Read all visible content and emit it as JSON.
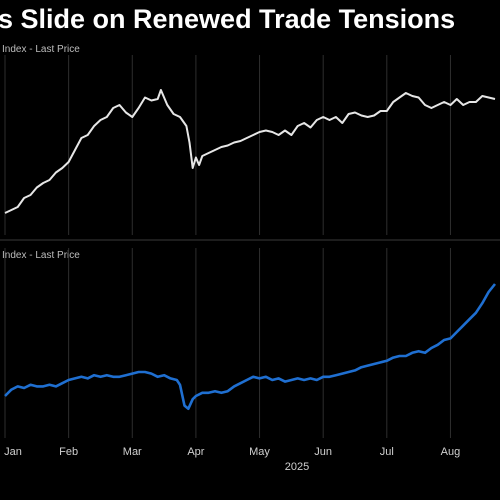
{
  "header": {
    "title": "s Slide on Renewed Trade Tensions"
  },
  "chart_data": [
    {
      "type": "line",
      "label": "Index - Last Price",
      "color": "#e6e6e6",
      "x_unit": "month index (0 = Jan 2025)",
      "xlim": [
        0,
        7.7
      ],
      "ylim": [
        0,
        100
      ],
      "points": [
        [
          0.0,
          8
        ],
        [
          0.1,
          10
        ],
        [
          0.2,
          12
        ],
        [
          0.3,
          18
        ],
        [
          0.4,
          20
        ],
        [
          0.5,
          25
        ],
        [
          0.6,
          28
        ],
        [
          0.7,
          30
        ],
        [
          0.8,
          35
        ],
        [
          0.9,
          38
        ],
        [
          1.0,
          42
        ],
        [
          1.1,
          50
        ],
        [
          1.2,
          58
        ],
        [
          1.3,
          60
        ],
        [
          1.4,
          66
        ],
        [
          1.5,
          70
        ],
        [
          1.6,
          72
        ],
        [
          1.7,
          78
        ],
        [
          1.8,
          80
        ],
        [
          1.9,
          75
        ],
        [
          2.0,
          72
        ],
        [
          2.1,
          78
        ],
        [
          2.2,
          85
        ],
        [
          2.3,
          83
        ],
        [
          2.4,
          84
        ],
        [
          2.45,
          90
        ],
        [
          2.55,
          80
        ],
        [
          2.65,
          74
        ],
        [
          2.75,
          72
        ],
        [
          2.85,
          66
        ],
        [
          2.9,
          55
        ],
        [
          2.95,
          38
        ],
        [
          3.0,
          45
        ],
        [
          3.05,
          40
        ],
        [
          3.1,
          46
        ],
        [
          3.2,
          48
        ],
        [
          3.3,
          50
        ],
        [
          3.4,
          52
        ],
        [
          3.5,
          53
        ],
        [
          3.6,
          55
        ],
        [
          3.7,
          56
        ],
        [
          3.8,
          58
        ],
        [
          3.9,
          60
        ],
        [
          4.0,
          62
        ],
        [
          4.1,
          63
        ],
        [
          4.2,
          62
        ],
        [
          4.3,
          60
        ],
        [
          4.4,
          63
        ],
        [
          4.5,
          60
        ],
        [
          4.6,
          66
        ],
        [
          4.7,
          68
        ],
        [
          4.8,
          65
        ],
        [
          4.9,
          70
        ],
        [
          5.0,
          72
        ],
        [
          5.1,
          70
        ],
        [
          5.2,
          72
        ],
        [
          5.3,
          68
        ],
        [
          5.4,
          74
        ],
        [
          5.5,
          75
        ],
        [
          5.6,
          73
        ],
        [
          5.7,
          72
        ],
        [
          5.8,
          73
        ],
        [
          5.9,
          76
        ],
        [
          6.0,
          76
        ],
        [
          6.1,
          82
        ],
        [
          6.2,
          85
        ],
        [
          6.3,
          88
        ],
        [
          6.4,
          86
        ],
        [
          6.5,
          85
        ],
        [
          6.6,
          80
        ],
        [
          6.7,
          78
        ],
        [
          6.8,
          80
        ],
        [
          6.9,
          82
        ],
        [
          7.0,
          80
        ],
        [
          7.1,
          84
        ],
        [
          7.2,
          80
        ],
        [
          7.3,
          82
        ],
        [
          7.4,
          82
        ],
        [
          7.5,
          86
        ],
        [
          7.6,
          85
        ],
        [
          7.7,
          84
        ]
      ]
    },
    {
      "type": "line",
      "label": "Index - Last Price",
      "color": "#1f6fd1",
      "x_unit": "month index (0 = Jan 2025)",
      "xlim": [
        0,
        7.7
      ],
      "ylim": [
        0,
        100
      ],
      "x_tick_labels": [
        "Jan",
        "Feb",
        "Mar",
        "Apr",
        "May",
        "Jun",
        "Jul",
        "Aug"
      ],
      "x_tick_positions": [
        0,
        1,
        2,
        3,
        4,
        5,
        6,
        7
      ],
      "x_axis_year": "2025",
      "points": [
        [
          0.0,
          20
        ],
        [
          0.1,
          24
        ],
        [
          0.2,
          26
        ],
        [
          0.3,
          25
        ],
        [
          0.4,
          27
        ],
        [
          0.5,
          26
        ],
        [
          0.6,
          26
        ],
        [
          0.7,
          27
        ],
        [
          0.8,
          26
        ],
        [
          0.9,
          28
        ],
        [
          1.0,
          30
        ],
        [
          1.1,
          31
        ],
        [
          1.2,
          32
        ],
        [
          1.3,
          31
        ],
        [
          1.4,
          33
        ],
        [
          1.5,
          32
        ],
        [
          1.6,
          33
        ],
        [
          1.7,
          32
        ],
        [
          1.8,
          32
        ],
        [
          1.9,
          33
        ],
        [
          2.0,
          34
        ],
        [
          2.1,
          35
        ],
        [
          2.2,
          35
        ],
        [
          2.3,
          34
        ],
        [
          2.4,
          32
        ],
        [
          2.5,
          33
        ],
        [
          2.6,
          31
        ],
        [
          2.7,
          30
        ],
        [
          2.75,
          27
        ],
        [
          2.82,
          14
        ],
        [
          2.88,
          12
        ],
        [
          2.95,
          18
        ],
        [
          3.0,
          20
        ],
        [
          3.1,
          22
        ],
        [
          3.2,
          22
        ],
        [
          3.3,
          23
        ],
        [
          3.4,
          22
        ],
        [
          3.5,
          23
        ],
        [
          3.6,
          26
        ],
        [
          3.7,
          28
        ],
        [
          3.8,
          30
        ],
        [
          3.9,
          32
        ],
        [
          4.0,
          31
        ],
        [
          4.1,
          32
        ],
        [
          4.2,
          30
        ],
        [
          4.3,
          31
        ],
        [
          4.4,
          29
        ],
        [
          4.5,
          30
        ],
        [
          4.6,
          31
        ],
        [
          4.7,
          30
        ],
        [
          4.8,
          31
        ],
        [
          4.9,
          30
        ],
        [
          5.0,
          32
        ],
        [
          5.1,
          32
        ],
        [
          5.2,
          33
        ],
        [
          5.3,
          34
        ],
        [
          5.4,
          35
        ],
        [
          5.5,
          36
        ],
        [
          5.6,
          38
        ],
        [
          5.7,
          39
        ],
        [
          5.8,
          40
        ],
        [
          5.9,
          41
        ],
        [
          6.0,
          42
        ],
        [
          6.1,
          44
        ],
        [
          6.2,
          45
        ],
        [
          6.3,
          45
        ],
        [
          6.4,
          47
        ],
        [
          6.5,
          48
        ],
        [
          6.6,
          47
        ],
        [
          6.7,
          50
        ],
        [
          6.8,
          52
        ],
        [
          6.9,
          55
        ],
        [
          7.0,
          56
        ],
        [
          7.1,
          60
        ],
        [
          7.2,
          64
        ],
        [
          7.3,
          68
        ],
        [
          7.4,
          72
        ],
        [
          7.5,
          78
        ],
        [
          7.6,
          85
        ],
        [
          7.7,
          90
        ]
      ]
    }
  ]
}
